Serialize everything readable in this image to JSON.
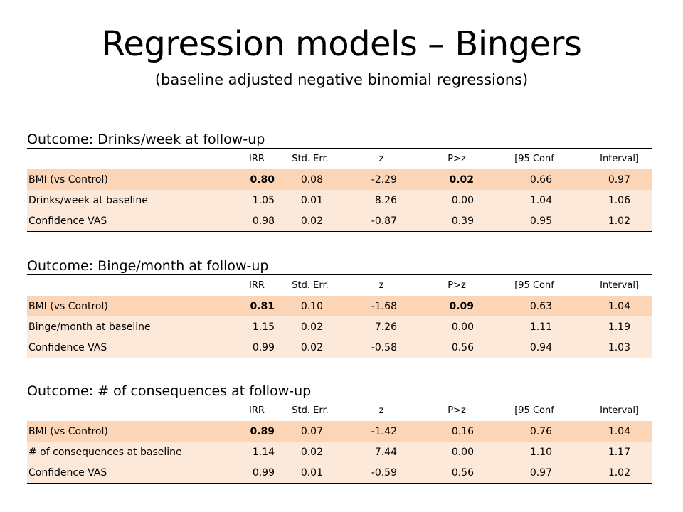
{
  "title": "Regression models – Bingers",
  "subtitle": "(baseline adjusted negative binomial regressions)",
  "headers": [
    "IRR",
    "Std. Err.",
    "z",
    "P>z",
    "[95 Conf",
    "Interval]"
  ],
  "sections": [
    {
      "title": "Outcome: Drinks/week at follow-up",
      "rows": [
        {
          "label": "BMI (vs Control)",
          "vals": [
            "0.80",
            "0.08",
            "-2.29",
            "0.02",
            "0.66",
            "0.97"
          ],
          "bold": [
            true,
            false,
            false,
            true,
            false,
            false
          ]
        },
        {
          "label": "Drinks/week  at baseline",
          "vals": [
            "1.05",
            "0.01",
            "8.26",
            "0.00",
            "1.04",
            "1.06"
          ],
          "bold": [
            false,
            false,
            false,
            false,
            false,
            false
          ]
        },
        {
          "label": "Confidence  VAS",
          "vals": [
            "0.98",
            "0.02",
            "-0.87",
            "0.39",
            "0.95",
            "1.02"
          ],
          "bold": [
            false,
            false,
            false,
            false,
            false,
            false
          ]
        }
      ]
    },
    {
      "title": "Outcome: Binge/month at follow-up",
      "rows": [
        {
          "label": "BMI (vs Control)",
          "vals": [
            "0.81",
            "0.10",
            "-1.68",
            "0.09",
            "0.63",
            "1.04"
          ],
          "bold": [
            true,
            false,
            false,
            true,
            false,
            false
          ]
        },
        {
          "label": "Binge/month  at baseline",
          "vals": [
            "1.15",
            "0.02",
            "7.26",
            "0.00",
            "1.11",
            "1.19"
          ],
          "bold": [
            false,
            false,
            false,
            false,
            false,
            false
          ]
        },
        {
          "label": "Confidence  VAS",
          "vals": [
            "0.99",
            "0.02",
            "-0.58",
            "0.56",
            "0.94",
            "1.03"
          ],
          "bold": [
            false,
            false,
            false,
            false,
            false,
            false
          ]
        }
      ]
    },
    {
      "title": "Outcome: # of consequences at follow-up",
      "rows": [
        {
          "label": "BMI (vs Control)",
          "vals": [
            "0.89",
            "0.07",
            "-1.42",
            "0.16",
            "0.76",
            "1.04"
          ],
          "bold": [
            true,
            false,
            false,
            false,
            false,
            false
          ]
        },
        {
          "label": "# of consequences  at baseline",
          "vals": [
            "1.14",
            "0.02",
            "7.44",
            "0.00",
            "1.10",
            "1.17"
          ],
          "bold": [
            false,
            false,
            false,
            false,
            false,
            false
          ]
        },
        {
          "label": "Confidence  VAS",
          "vals": [
            "0.99",
            "0.01",
            "-0.59",
            "0.56",
            "0.97",
            "1.02"
          ],
          "bold": [
            false,
            false,
            false,
            false,
            false,
            false
          ]
        }
      ]
    }
  ]
}
